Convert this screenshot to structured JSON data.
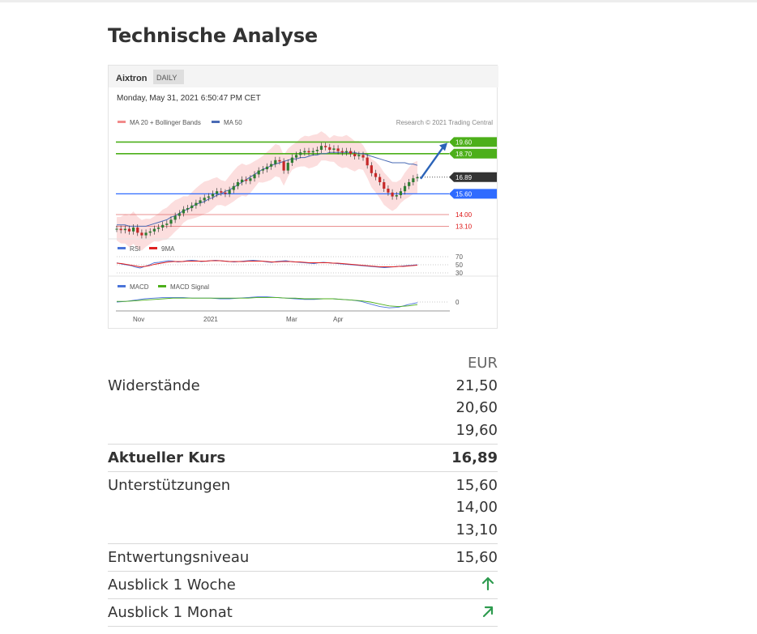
{
  "page_title": "Technische Analyse",
  "chart_header": {
    "instrument": "Aixtron",
    "period": "DAILY",
    "timestamp": "Monday, May 31, 2021 6:50:47 PM CET",
    "copyright": "Research © 2021 Trading Central"
  },
  "chart_data": {
    "type": "line",
    "x_ticks": [
      "Nov",
      "2021",
      "Mar",
      "Apr"
    ],
    "legend_price": [
      "MA 20 + Bollinger Bands",
      "MA 50"
    ],
    "legend_rsi": [
      "RSI",
      "9MA"
    ],
    "legend_macd": [
      "MACD",
      "MACD Signal"
    ],
    "rsi_levels": [
      "70",
      "50",
      "30"
    ],
    "macd_levels": [
      "0"
    ],
    "price_range": [
      12.5,
      20.5
    ],
    "level_labels": [
      "19.60",
      "18.70",
      "16.89",
      "15.60",
      "14.00",
      "13.10"
    ],
    "resistance_levels": [
      19.6,
      18.7
    ],
    "current_price": 16.89,
    "support_levels": [
      15.6
    ],
    "minor_support_levels": [
      14.0,
      13.1
    ],
    "colors": {
      "resistance": "#4caf1a",
      "support": "#2f6bff",
      "current": "#333333",
      "minor_support": "#e26b6b",
      "bollinger": "#fbd6d6",
      "ma50": "#4a6bb5",
      "up_candle": "#2e7d32",
      "down_candle": "#c62828",
      "forecast_arrow": "#2b63b8"
    },
    "price_series": [
      12.9,
      12.8,
      12.9,
      12.7,
      13.0,
      12.6,
      12.4,
      12.6,
      12.7,
      12.9,
      13.0,
      13.2,
      13.3,
      13.6,
      13.9,
      14.1,
      14.4,
      14.5,
      14.7,
      14.9,
      15.1,
      15.3,
      15.4,
      15.6,
      15.8,
      15.7,
      15.6,
      15.9,
      16.2,
      16.5,
      16.7,
      16.6,
      16.8,
      17.1,
      17.4,
      17.5,
      17.7,
      17.9,
      18.2,
      18.1,
      17.4,
      18.0,
      18.4,
      18.6,
      18.8,
      18.9,
      18.8,
      18.9,
      19.0,
      19.3,
      19.2,
      19.0,
      19.1,
      18.9,
      18.8,
      18.9,
      18.7,
      18.5,
      18.6,
      18.4,
      17.8,
      17.2,
      16.9,
      16.5,
      16.0,
      15.7,
      15.4,
      15.5,
      15.8,
      16.2,
      16.5,
      16.8,
      16.89
    ],
    "ma50_series": [
      13.2,
      13.2,
      13.2,
      13.1,
      13.1,
      13.1,
      13.1,
      13.1,
      13.2,
      13.3,
      13.4,
      13.5,
      13.6,
      13.8,
      13.9,
      14.1,
      14.3,
      14.4,
      14.6,
      14.8,
      14.9,
      15.0,
      15.2,
      15.3,
      15.5,
      15.6,
      15.8,
      15.9,
      16.1,
      16.3,
      16.5,
      16.7,
      16.9,
      17.1,
      17.3,
      17.5,
      17.6,
      17.8,
      17.9,
      18.0,
      18.1,
      18.2,
      18.3,
      18.3,
      18.4,
      18.4,
      18.5,
      18.6,
      18.6,
      18.7,
      18.7,
      18.8,
      18.8,
      18.8,
      18.8,
      18.8,
      18.8,
      18.8,
      18.7,
      18.7,
      18.6,
      18.5,
      18.4,
      18.3,
      18.2,
      18.1,
      18.0,
      18.0,
      18.0,
      18.0,
      17.9,
      17.9,
      17.8
    ],
    "rsi_series": [
      55,
      52,
      50,
      48,
      44,
      42,
      46,
      50,
      55,
      56,
      58,
      60,
      59,
      57,
      58,
      60,
      61,
      60,
      58,
      59,
      60,
      61,
      60,
      59,
      58,
      57,
      58,
      59,
      60,
      61,
      60,
      59,
      57,
      56,
      58,
      59,
      60,
      58,
      57,
      56,
      55,
      54,
      53,
      55,
      56,
      55,
      54,
      53,
      52,
      51,
      50,
      49,
      48,
      47,
      46,
      45,
      44,
      43,
      44,
      45,
      46,
      47,
      48,
      49,
      50
    ],
    "rsi9_series": [
      54,
      53,
      51,
      49,
      47,
      45,
      46,
      48,
      51,
      53,
      55,
      57,
      58,
      58,
      58,
      59,
      59,
      59,
      59,
      59,
      60,
      60,
      60,
      59,
      58,
      58,
      58,
      58,
      59,
      59,
      59,
      59,
      58,
      57,
      57,
      58,
      58,
      58,
      57,
      57,
      56,
      55,
      55,
      55,
      55,
      55,
      54,
      54,
      53,
      52,
      51,
      50,
      49,
      48,
      47,
      46,
      45,
      45,
      45,
      45,
      46,
      46,
      47,
      48,
      49
    ],
    "macd_series": [
      0.0,
      0.1,
      0.3,
      0.5,
      0.6,
      0.7,
      0.7,
      0.7,
      0.6,
      0.6,
      0.6,
      0.5,
      0.5,
      0.6,
      0.7,
      0.8,
      0.8,
      0.7,
      0.6,
      0.5,
      0.4,
      0.4,
      0.5,
      0.5,
      0.4,
      0.3,
      0.1,
      -0.3,
      -0.7,
      -0.9,
      -0.8,
      -0.4,
      -0.1
    ],
    "macd_signal_series": [
      0.1,
      0.1,
      0.2,
      0.3,
      0.4,
      0.5,
      0.6,
      0.6,
      0.6,
      0.6,
      0.6,
      0.6,
      0.6,
      0.6,
      0.6,
      0.7,
      0.7,
      0.7,
      0.6,
      0.6,
      0.5,
      0.5,
      0.5,
      0.5,
      0.4,
      0.3,
      0.2,
      0.0,
      -0.3,
      -0.6,
      -0.7,
      -0.6,
      -0.4
    ]
  },
  "table": {
    "currency": "EUR",
    "resistances_label": "Widerstände",
    "resistances": [
      "21,50",
      "20,60",
      "19,60"
    ],
    "current_label": "Aktueller Kurs",
    "current_value": "16,89",
    "supports_label": "Unterstützungen",
    "supports": [
      "15,60",
      "14,00",
      "13,10"
    ],
    "invalidation_label": "Entwertungsniveau",
    "invalidation_value": "15,60",
    "outlook_week_label": "Ausblick 1 Woche",
    "outlook_week_icon": "arrow-up-icon",
    "outlook_month_label": "Ausblick 1 Monat",
    "outlook_month_icon": "arrow-up-right-icon"
  }
}
